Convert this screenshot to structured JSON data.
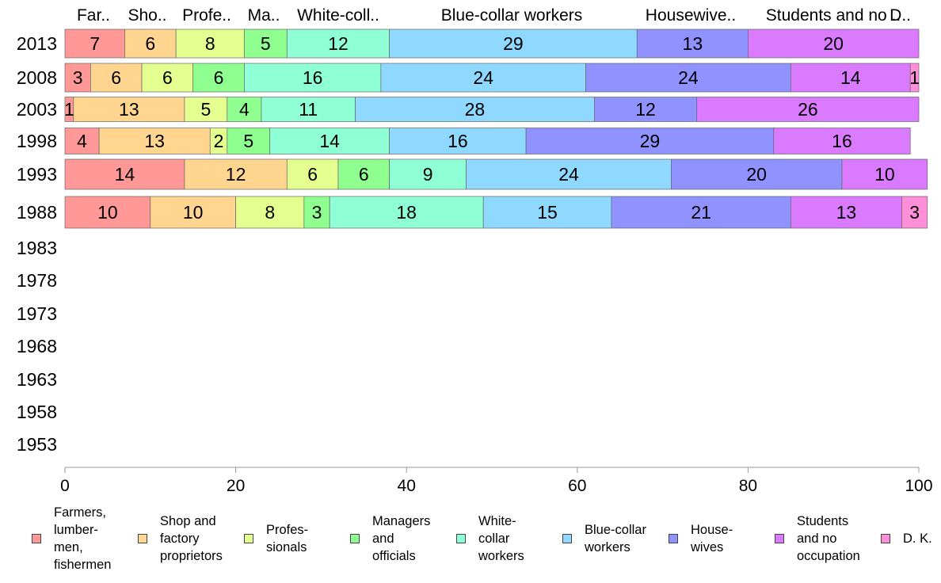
{
  "chart_data": {
    "type": "bar",
    "orientation": "horizontal",
    "stacked": true,
    "categories": [
      "2013",
      "2008",
      "2003",
      "1998",
      "1993",
      "1988",
      "1983",
      "1978",
      "1973",
      "1968",
      "1963",
      "1958",
      "1953"
    ],
    "xlim": [
      0,
      100
    ],
    "xticks": [
      "0",
      "20",
      "40",
      "60",
      "80",
      "100"
    ],
    "top_labels": [
      "Far..",
      "Sho..",
      "Profe..",
      "Ma..",
      "White-coll..",
      "Blue-collar workers",
      "Housewive..",
      "Students and no ..",
      "D.."
    ],
    "legend_position": "bottom",
    "series": [
      {
        "name": "Farmers,\nlumber-\nmen,\nfishermen",
        "color": "#ff9896",
        "values": [
          7,
          3,
          1,
          4,
          14,
          10,
          null,
          null,
          null,
          null,
          null,
          null,
          null
        ]
      },
      {
        "name": "Shop and\nfactory\nproprietors",
        "color": "#ffd58f",
        "values": [
          6,
          6,
          13,
          13,
          12,
          10,
          null,
          null,
          null,
          null,
          null,
          null,
          null
        ]
      },
      {
        "name": "Profes-\nsionals",
        "color": "#e4ff8f",
        "values": [
          8,
          6,
          5,
          2,
          6,
          8,
          null,
          null,
          null,
          null,
          null,
          null,
          null
        ]
      },
      {
        "name": "Managers\nand\nofficials",
        "color": "#8fff8f",
        "values": [
          5,
          6,
          4,
          5,
          6,
          3,
          null,
          null,
          null,
          null,
          null,
          null,
          null
        ]
      },
      {
        "name": "White-\ncollar\nworkers",
        "color": "#8fffd6",
        "values": [
          12,
          16,
          11,
          14,
          9,
          18,
          null,
          null,
          null,
          null,
          null,
          null,
          null
        ]
      },
      {
        "name": "Blue-collar\nworkers",
        "color": "#8fd8ff",
        "values": [
          29,
          24,
          28,
          16,
          24,
          15,
          null,
          null,
          null,
          null,
          null,
          null,
          null
        ]
      },
      {
        "name": "House-\nwives",
        "color": "#8f92ff",
        "values": [
          13,
          24,
          12,
          29,
          20,
          21,
          null,
          null,
          null,
          null,
          null,
          null,
          null
        ]
      },
      {
        "name": "Students\nand no\noccupation",
        "color": "#d97aff",
        "values": [
          20,
          14,
          26,
          16,
          10,
          13,
          null,
          null,
          null,
          null,
          null,
          null,
          null
        ]
      },
      {
        "name": "D. K.",
        "color": "#ff8fd8",
        "values": [
          null,
          1,
          null,
          null,
          null,
          3,
          null,
          null,
          null,
          null,
          null,
          null,
          null
        ]
      }
    ]
  }
}
